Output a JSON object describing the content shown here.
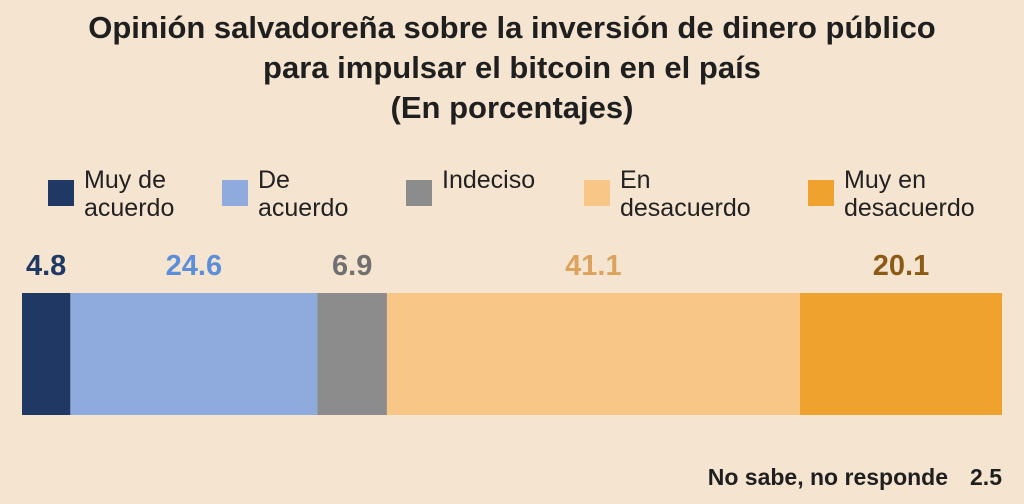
{
  "chart_data": {
    "type": "bar",
    "orientation": "horizontal-stacked-100",
    "title_lines": [
      "Opinión salvadoreña sobre la inversión de dinero público",
      "para impulsar el bitcoin en el país",
      "(En porcentajes)"
    ],
    "legend_position": "top",
    "series": [
      {
        "name": "Muy de\nacuerdo",
        "value": 4.8,
        "color": "#1f3864",
        "label_color": "#1f3864"
      },
      {
        "name": "De\nacuerdo",
        "value": 24.6,
        "color": "#8faadc",
        "label_color": "#5b8fd9"
      },
      {
        "name": "Indeciso",
        "value": 6.9,
        "color": "#8c8c8c",
        "label_color": "#707070"
      },
      {
        "name": "En\ndesacuerdo",
        "value": 41.1,
        "color": "#f8c788",
        "label_color": "#dba35e"
      },
      {
        "name": "Muy en\ndesacuerdo",
        "value": 20.1,
        "color": "#f0a22e",
        "label_color": "#8b5a14"
      }
    ],
    "no_response": {
      "label": "No sabe, no responde",
      "value": "2.5"
    }
  }
}
